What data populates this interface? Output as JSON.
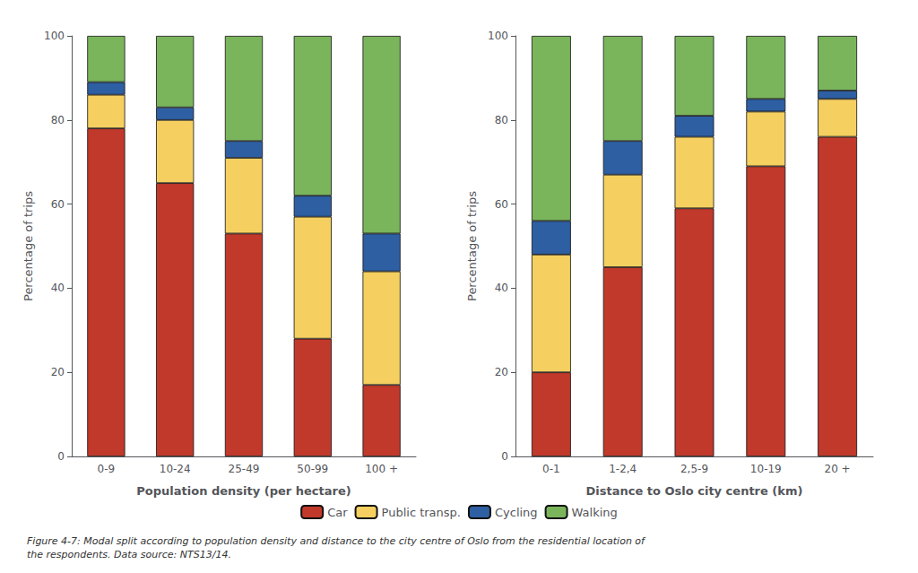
{
  "chart_data": [
    {
      "type": "bar",
      "stacked": true,
      "grid": false,
      "legend": "bottom",
      "xlabel": "Population density (per hectare)",
      "ylabel": "Percentage of trips",
      "categories": [
        "0-9",
        "10-24",
        "25-49",
        "50-99",
        "100 +"
      ],
      "series": [
        {
          "name": "Car",
          "color": "#c0392b",
          "values": [
            78,
            65,
            53,
            28,
            17
          ]
        },
        {
          "name": "Public transp.",
          "color": "#f5d060",
          "values": [
            8,
            15,
            18,
            29,
            27
          ]
        },
        {
          "name": "Cycling",
          "color": "#2e5fa3",
          "values": [
            3,
            3,
            4,
            5,
            9
          ]
        },
        {
          "name": "Walking",
          "color": "#7ab55c",
          "values": [
            11,
            17,
            25,
            38,
            47
          ]
        }
      ],
      "ylim": [
        0,
        100
      ],
      "yticks": [
        0,
        20,
        40,
        60,
        80,
        100
      ]
    },
    {
      "type": "bar",
      "stacked": true,
      "grid": false,
      "legend": "bottom",
      "xlabel": "Distance to Oslo city centre (km)",
      "ylabel": "Percentage of trips",
      "categories": [
        "0-1",
        "1-2,4",
        "2,5-9",
        "10-19",
        "20 +"
      ],
      "series": [
        {
          "name": "Car",
          "color": "#c0392b",
          "values": [
            20,
            45,
            59,
            69,
            76
          ]
        },
        {
          "name": "Public transp.",
          "color": "#f5d060",
          "values": [
            28,
            22,
            17,
            13,
            9
          ]
        },
        {
          "name": "Cycling",
          "color": "#2e5fa3",
          "values": [
            8,
            8,
            5,
            3,
            2
          ]
        },
        {
          "name": "Walking",
          "color": "#7ab55c",
          "values": [
            44,
            25,
            19,
            15,
            13
          ]
        }
      ],
      "ylim": [
        0,
        100
      ],
      "yticks": [
        0,
        20,
        40,
        60,
        80,
        100
      ]
    }
  ],
  "caption": "Figure 4-7: Modal split according to population density and distance to the city centre of Oslo from the residential location of\nthe respondents. Data source: NTS13/14."
}
